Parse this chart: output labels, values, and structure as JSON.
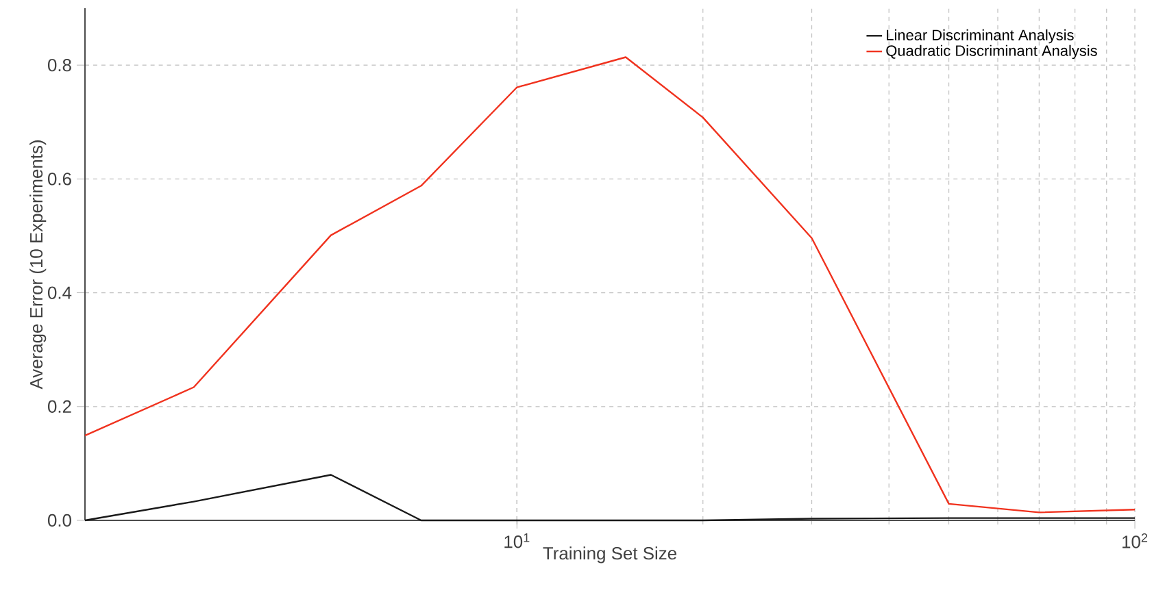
{
  "chart_data": {
    "type": "line",
    "xlabel": "Training Set Size",
    "ylabel": "Average Error (10 Experiments)",
    "x": [
      2,
      3,
      5,
      7,
      10,
      15,
      20,
      30,
      50,
      70,
      100
    ],
    "series": [
      {
        "name": "Linear Discriminant Analysis",
        "color": "#1a1a1a",
        "values": [
          0,
          0.033,
          0.08,
          0,
          0,
          0,
          0,
          0.003,
          0.004,
          0.004,
          0.004
        ]
      },
      {
        "name": "Quadratic Discriminant Analysis",
        "color": "#f0321e",
        "values": [
          0.149,
          0.234,
          0.501,
          0.588,
          0.761,
          0.814,
          0.708,
          0.496,
          0.029,
          0.014,
          0.019
        ]
      }
    ],
    "log": "x",
    "xlim": [
      2,
      100
    ],
    "ylim": [
      0,
      0.9
    ],
    "xticks": [
      {
        "value": 10,
        "label": "10$^{1}$"
      },
      {
        "value": 100,
        "label": "10$^{2}$"
      }
    ],
    "yticks": [
      {
        "value": 0,
        "label": "0.0"
      },
      {
        "value": 0.2,
        "label": "0.2"
      },
      {
        "value": 0.4,
        "label": "0.4"
      },
      {
        "value": 0.6,
        "label": "0.6"
      },
      {
        "value": 0.8,
        "label": "0.8"
      }
    ],
    "grid": true,
    "legend": "top right",
    "marker": "none",
    "line_style": "solid"
  }
}
